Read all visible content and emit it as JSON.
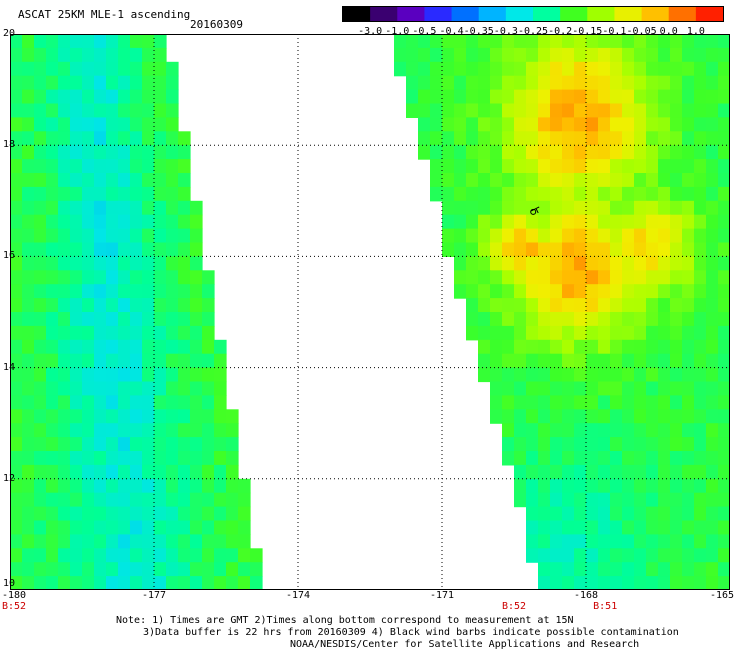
{
  "header": {
    "title": "ASCAT 25KM MLE-1 ascending",
    "date": "20160309"
  },
  "colorbar": {
    "labels": [
      "-3.0",
      "-1.0",
      "-0.5",
      "-0.4",
      "-0.35",
      "-0.3",
      "-0.25",
      "-0.2",
      "-0.15",
      "-0.1",
      "-0.05",
      "0.0",
      "1.0"
    ],
    "colors": [
      "#000000",
      "#3a0070",
      "#5a00c0",
      "#2a2aff",
      "#0070ff",
      "#00b4ff",
      "#00e8e8",
      "#00ffa0",
      "#40ff20",
      "#a0ff00",
      "#e8f000",
      "#ffc000",
      "#ff7000",
      "#ff2000"
    ]
  },
  "map": {
    "lon_range": [
      -180,
      -165
    ],
    "lat_range": [
      10,
      20
    ],
    "lon_ticks": [
      "-180",
      "-177",
      "-174",
      "-171",
      "-168",
      "-165"
    ],
    "lat_ticks": [
      "20",
      "18",
      "16",
      "14",
      "12",
      "10"
    ],
    "time_labels": [
      {
        "text": "B:52",
        "lon": -180
      },
      {
        "text": "B:52",
        "lon": -169.5
      },
      {
        "text": "B:51",
        "lon": -167.6
      }
    ],
    "contamination_marker_icon": "wind-barb-icon",
    "swaths": [
      {
        "name": "west-swath",
        "left_edge_lon": -180,
        "right_edge_north_lon": -176.6,
        "right_edge_south_lon": -174.6
      },
      {
        "name": "east-swath",
        "left_edge_north_lon": -172.2,
        "left_edge_south_lon": -169.0,
        "right_edge_lon": -165
      }
    ]
  },
  "notes": {
    "line1": "Note: 1) Times are GMT 2)Times along bottom correspond to measurement at 15N",
    "line2": "3)Data buffer is 22 hrs from 20160309 4) Black wind barbs indicate possible contamination",
    "line3": "NOAA/NESDIS/Center for Satellite Applications and Research"
  }
}
